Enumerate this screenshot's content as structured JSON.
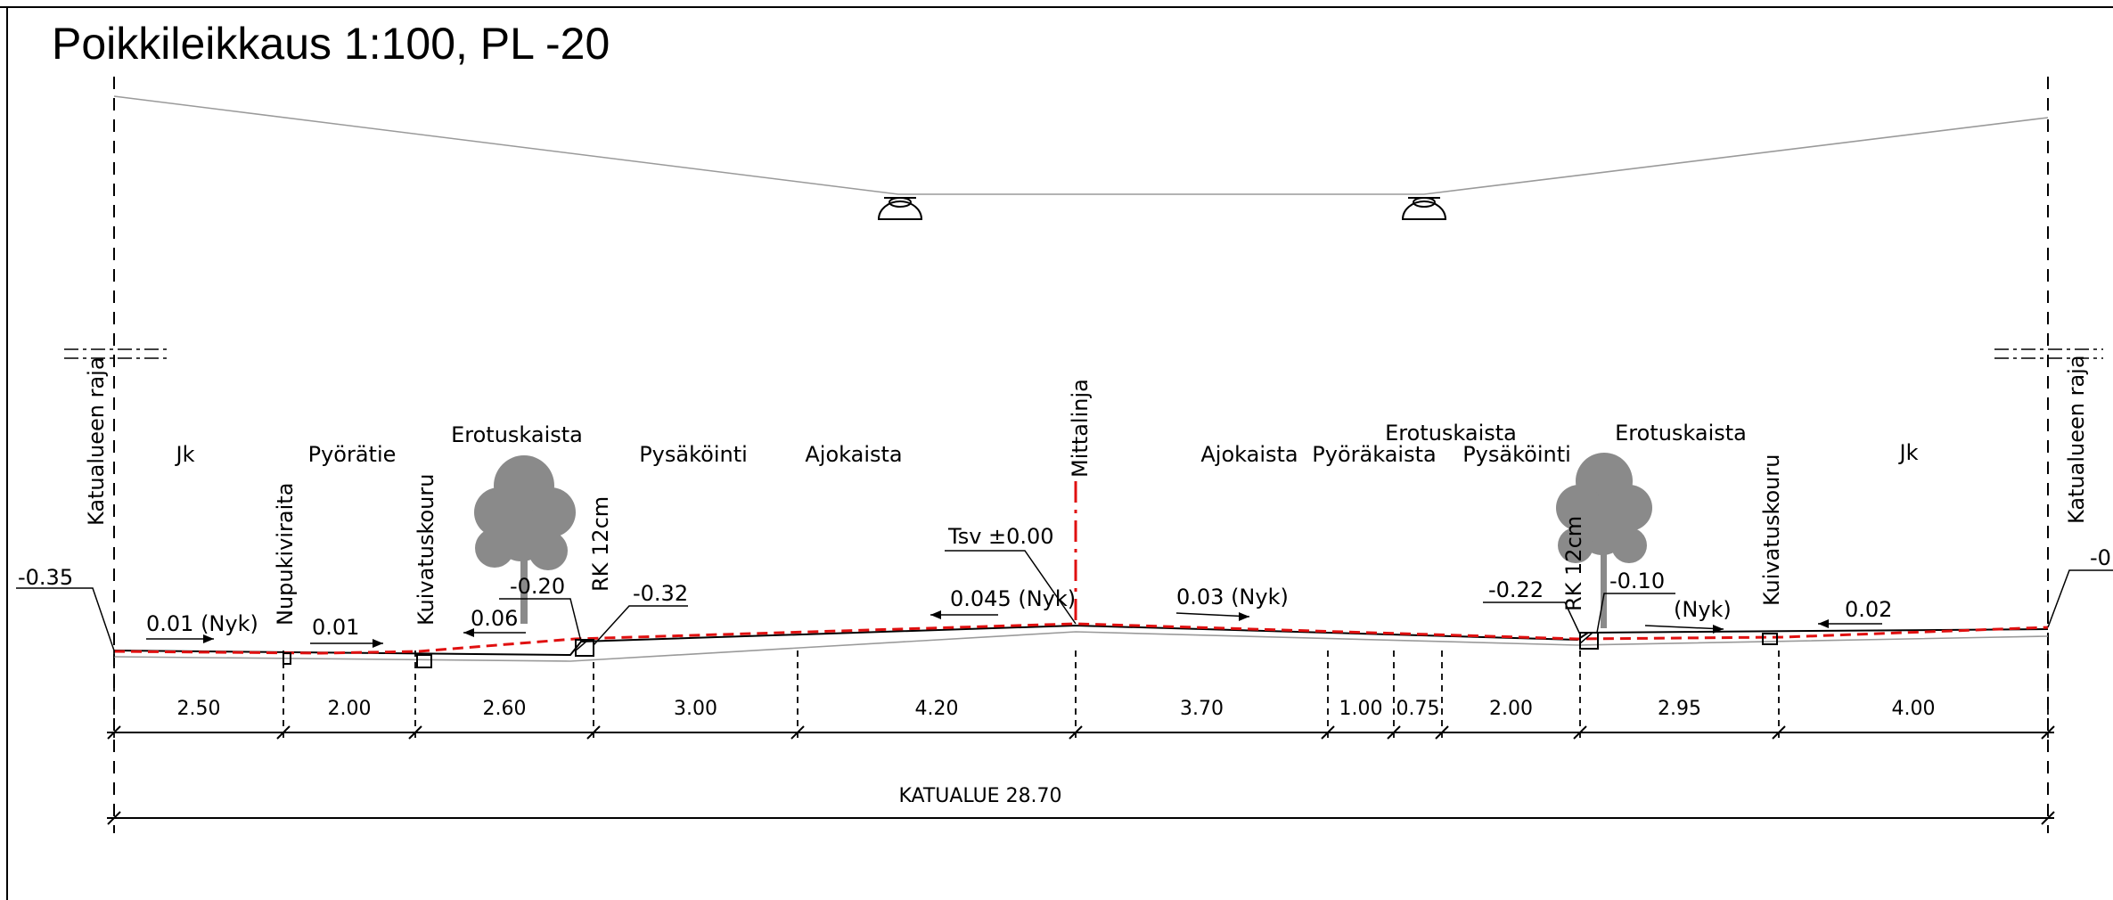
{
  "title": "Poikkileikkaus 1:100, PL -20",
  "zone_labels": {
    "jk_left": "Jk",
    "pyoratie": "Pyörätie",
    "erotuskaista_left": "Erotuskaista",
    "pysakointi_left": "Pysäköinti",
    "ajokaista_left": "Ajokaista",
    "ajokaista_right": "Ajokaista",
    "pyorakaista": "Pyöräkaista",
    "erotuskaista_mid": "Erotuskaista",
    "pysakointi_right": "Pysäköinti",
    "erotuskaista_right": "Erotuskaista",
    "jk_right": "Jk"
  },
  "vertical_labels": {
    "katualueen_raja_left": "Katualueen raja",
    "nupukiviraita": "Nupukiviraita",
    "kuivatuskouru_left": "Kuivatuskouru",
    "rk_left": "RK 12cm",
    "mittalinja": "Mittalinja",
    "rk_right": "RK 12cm",
    "kuivatuskouru_right": "Kuivatuskouru",
    "katualueen_raja_right": "Katualueen raja"
  },
  "levels": {
    "left_edge": "-0.35",
    "left_curb_top": "-0.20",
    "left_curb": "-0.32",
    "tsv": "Tsv ±0.00",
    "right_curb": "-0.22",
    "right_curb_top": "-0.10",
    "right_edge": "-0"
  },
  "slopes": {
    "jk_left": "0.01 (Nyk)",
    "pyoratie": "0.01",
    "erotus_left": "0.06",
    "carriage_left": "0.045 (Nyk)",
    "carriage_right": "0.03  (Nyk)",
    "right_strip": "(Nyk)",
    "jk_right": "0.02"
  },
  "dimensions": [
    "2.50",
    "2.00",
    "2.60",
    "3.00",
    "4.20",
    "3.70",
    "1.00",
    "0.75",
    "2.00",
    "2.95",
    "4.00"
  ],
  "total": "KATUALUE   28.70",
  "colors": {
    "profile_red": "#e01010",
    "tree_grey": "#8a8a8a",
    "light_grey": "#9a9a9a"
  }
}
